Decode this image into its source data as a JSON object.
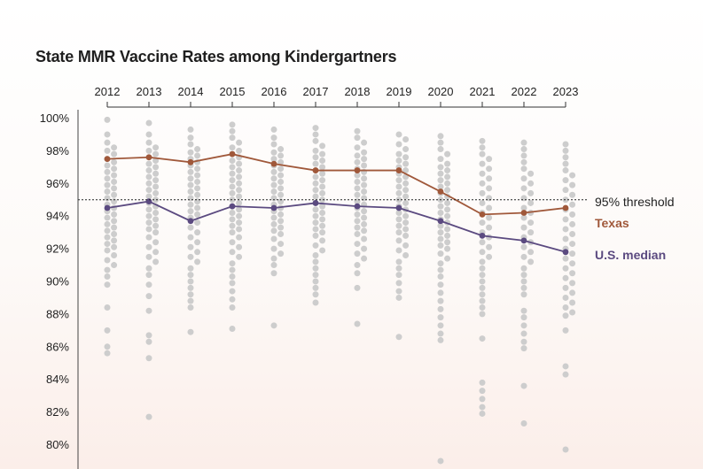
{
  "chart_data": {
    "type": "scatter",
    "title": "State MMR Vaccine Rates among Kindergartners",
    "years": [
      "2012",
      "2013",
      "2014",
      "2015",
      "2016",
      "2017",
      "2018",
      "2019",
      "2020",
      "2021",
      "2022",
      "2023"
    ],
    "y_ticks": [
      "100%",
      "98%",
      "96%",
      "94%",
      "92%",
      "90%",
      "88%",
      "86%",
      "84%",
      "82%",
      "80%"
    ],
    "ylim": [
      79,
      100.3
    ],
    "threshold": {
      "value": 95,
      "label": "95% threshold"
    },
    "series": [
      {
        "name": "Texas",
        "color": "#a0583a",
        "values": [
          97.5,
          97.6,
          97.3,
          97.8,
          97.2,
          96.8,
          96.8,
          96.8,
          95.5,
          94.1,
          94.2,
          94.5
        ]
      },
      {
        "name": "U.S. median",
        "color": "#5b4a80",
        "values": [
          94.5,
          94.9,
          93.7,
          94.6,
          94.5,
          94.8,
          94.6,
          94.5,
          93.7,
          92.8,
          92.5,
          91.8
        ]
      }
    ],
    "states_color": "#cdcdcd",
    "states": [
      [
        99.9,
        99.0,
        98.5,
        98.2,
        98.0,
        97.8,
        97.5,
        97.3,
        97.1,
        96.9,
        96.7,
        96.5,
        96.3,
        96.1,
        95.9,
        95.7,
        95.5,
        95.3,
        95.1,
        94.9,
        94.7,
        94.5,
        94.3,
        94.1,
        93.9,
        93.7,
        93.5,
        93.3,
        93.1,
        92.9,
        92.7,
        92.5,
        92.3,
        92.1,
        91.9,
        91.6,
        91.3,
        91.0,
        90.7,
        90.3,
        89.8,
        88.4,
        87.0,
        86.0,
        85.6
      ],
      [
        99.7,
        99.0,
        98.5,
        98.2,
        98.0,
        97.8,
        97.6,
        97.4,
        97.2,
        97.0,
        96.8,
        96.6,
        96.4,
        96.2,
        96.0,
        95.8,
        95.6,
        95.4,
        95.2,
        95.0,
        94.8,
        94.6,
        94.4,
        94.2,
        94.0,
        93.8,
        93.6,
        93.4,
        93.2,
        93.0,
        92.7,
        92.4,
        92.1,
        91.8,
        91.5,
        91.2,
        90.8,
        90.4,
        89.8,
        89.1,
        88.2,
        86.7,
        86.3,
        85.3,
        81.7
      ],
      [
        99.3,
        98.8,
        98.4,
        98.1,
        97.9,
        97.7,
        97.5,
        97.3,
        97.1,
        96.9,
        96.7,
        96.5,
        96.3,
        96.1,
        95.9,
        95.7,
        95.5,
        95.3,
        95.1,
        94.9,
        94.7,
        94.5,
        94.3,
        94.1,
        93.9,
        93.6,
        93.3,
        93.0,
        92.7,
        92.4,
        92.1,
        91.8,
        91.5,
        91.2,
        90.8,
        90.4,
        90.0,
        89.6,
        89.2,
        88.8,
        88.4,
        86.9
      ],
      [
        99.6,
        99.2,
        98.8,
        98.5,
        98.2,
        98.0,
        97.8,
        97.6,
        97.4,
        97.2,
        97.0,
        96.8,
        96.6,
        96.4,
        96.2,
        96.0,
        95.8,
        95.6,
        95.4,
        95.2,
        95.0,
        94.8,
        94.6,
        94.4,
        94.2,
        94.0,
        93.8,
        93.6,
        93.4,
        93.2,
        93.0,
        92.7,
        92.4,
        92.1,
        91.8,
        91.5,
        91.1,
        90.7,
        90.3,
        89.9,
        89.4,
        88.9,
        88.4,
        87.1
      ],
      [
        99.3,
        98.8,
        98.4,
        98.1,
        97.9,
        97.7,
        97.5,
        97.3,
        97.1,
        96.9,
        96.7,
        96.5,
        96.3,
        96.1,
        95.9,
        95.7,
        95.5,
        95.3,
        95.1,
        94.9,
        94.7,
        94.5,
        94.3,
        94.1,
        93.9,
        93.7,
        93.5,
        93.3,
        93.1,
        92.9,
        92.6,
        92.3,
        92.0,
        91.7,
        91.4,
        91.0,
        90.5,
        87.3
      ],
      [
        99.4,
        99.0,
        98.6,
        98.3,
        98.0,
        97.8,
        97.6,
        97.4,
        97.2,
        97.0,
        96.8,
        96.6,
        96.4,
        96.2,
        96.0,
        95.8,
        95.6,
        95.4,
        95.2,
        95.0,
        94.8,
        94.6,
        94.4,
        94.2,
        94.0,
        93.8,
        93.6,
        93.4,
        93.2,
        93.0,
        92.8,
        92.5,
        92.2,
        91.9,
        91.6,
        91.2,
        90.8,
        90.4,
        90.0,
        89.6,
        89.2,
        88.7
      ],
      [
        99.2,
        98.8,
        98.5,
        98.2,
        97.9,
        97.7,
        97.5,
        97.3,
        97.1,
        96.9,
        96.7,
        96.5,
        96.3,
        96.1,
        95.9,
        95.7,
        95.5,
        95.3,
        95.1,
        94.9,
        94.7,
        94.5,
        94.3,
        94.1,
        93.9,
        93.7,
        93.5,
        93.3,
        93.1,
        92.9,
        92.6,
        92.3,
        92.0,
        91.7,
        91.4,
        91.0,
        90.5,
        89.6,
        87.4
      ],
      [
        99.0,
        98.7,
        98.4,
        98.1,
        97.8,
        97.6,
        97.4,
        97.2,
        97.0,
        96.8,
        96.6,
        96.4,
        96.2,
        96.0,
        95.8,
        95.6,
        95.4,
        95.2,
        95.0,
        94.8,
        94.6,
        94.4,
        94.2,
        94.0,
        93.8,
        93.6,
        93.4,
        93.2,
        93.0,
        92.8,
        92.5,
        92.2,
        91.9,
        91.6,
        91.2,
        90.8,
        90.4,
        89.9,
        89.4,
        89.0,
        86.6
      ],
      [
        98.9,
        98.5,
        98.1,
        97.8,
        97.5,
        97.2,
        97.0,
        96.8,
        96.6,
        96.4,
        96.2,
        96.0,
        95.8,
        95.6,
        95.4,
        95.2,
        95.0,
        94.8,
        94.6,
        94.4,
        94.2,
        94.0,
        93.8,
        93.6,
        93.4,
        93.2,
        93.0,
        92.8,
        92.6,
        92.4,
        92.2,
        92.0,
        91.7,
        91.4,
        91.1,
        90.7,
        90.3,
        89.8,
        89.3,
        88.8,
        88.3,
        87.8,
        87.3,
        86.8,
        86.4,
        79.0
      ],
      [
        98.6,
        98.2,
        97.8,
        97.5,
        97.2,
        96.9,
        96.6,
        96.3,
        96.0,
        95.7,
        95.4,
        95.1,
        94.8,
        94.5,
        94.2,
        93.9,
        93.6,
        93.3,
        93.0,
        92.7,
        92.4,
        92.1,
        91.8,
        91.5,
        91.2,
        90.8,
        90.4,
        90.0,
        89.6,
        89.2,
        88.8,
        88.4,
        88.0,
        86.5,
        83.8,
        83.3,
        82.8,
        82.3,
        81.9
      ],
      [
        98.5,
        98.1,
        97.7,
        97.3,
        96.9,
        96.6,
        96.3,
        96.0,
        95.7,
        95.4,
        95.1,
        94.8,
        94.5,
        94.2,
        93.9,
        93.6,
        93.3,
        93.0,
        92.7,
        92.4,
        92.1,
        91.8,
        91.5,
        91.2,
        90.8,
        90.4,
        90.0,
        89.6,
        89.2,
        88.2,
        87.8,
        87.3,
        86.8,
        86.3,
        85.9,
        83.6,
        81.3
      ],
      [
        98.4,
        98.0,
        97.6,
        97.2,
        96.8,
        96.5,
        96.2,
        95.9,
        95.6,
        95.3,
        95.0,
        94.7,
        94.4,
        94.1,
        93.8,
        93.5,
        93.2,
        92.9,
        92.6,
        92.3,
        92.0,
        91.7,
        91.4,
        91.1,
        90.8,
        90.5,
        90.2,
        89.9,
        89.6,
        89.3,
        89.0,
        88.7,
        88.4,
        88.1,
        87.9,
        87.0,
        84.8,
        84.3,
        79.7
      ]
    ]
  }
}
